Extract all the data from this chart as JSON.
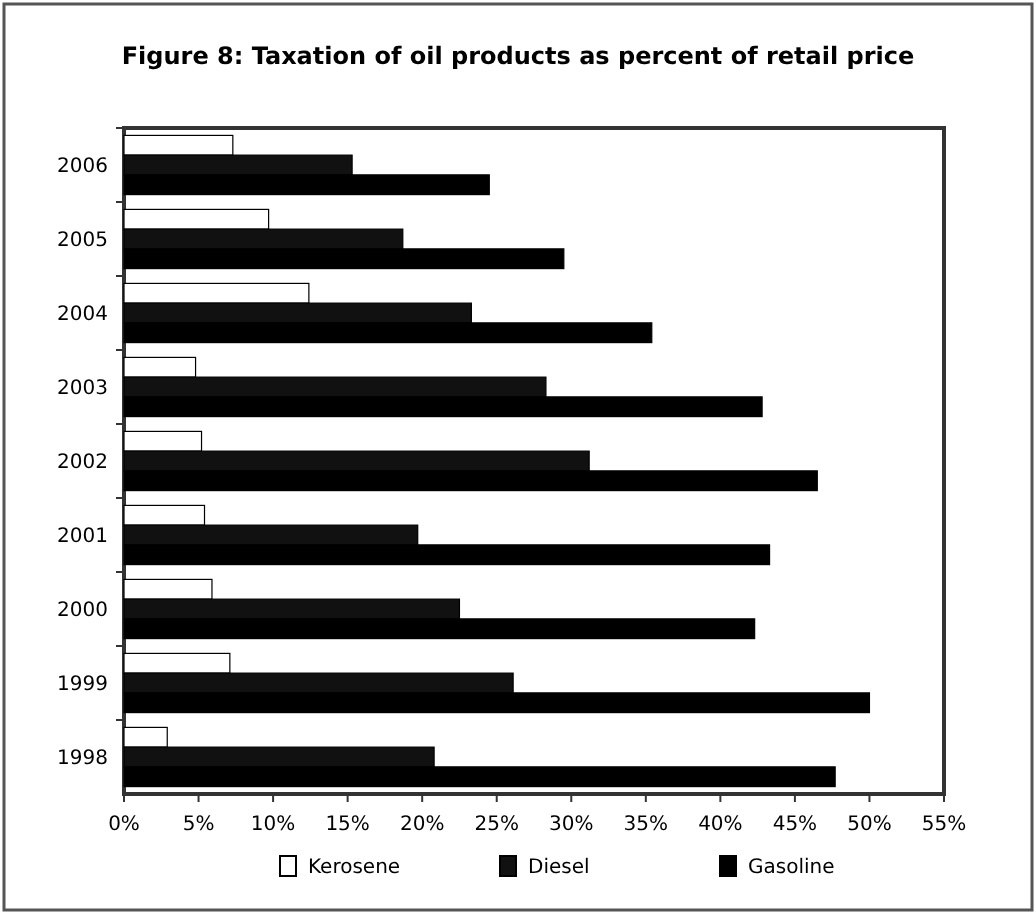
{
  "chart_data": {
    "type": "bar",
    "orientation": "horizontal",
    "title": "Figure 8: Taxation of oil products as percent of retail price",
    "categories": [
      "2006",
      "2005",
      "2004",
      "2003",
      "2002",
      "2001",
      "2000",
      "1999",
      "1998"
    ],
    "series": [
      {
        "name": "Kerosene",
        "color": "#ffffff",
        "values": [
          7.3,
          9.7,
          12.4,
          4.8,
          5.2,
          5.4,
          5.9,
          7.1,
          2.9
        ]
      },
      {
        "name": "Diesel",
        "color": "#111111",
        "values": [
          15.3,
          18.7,
          23.3,
          28.3,
          31.2,
          19.7,
          22.5,
          26.1,
          20.8
        ]
      },
      {
        "name": "Gasoline",
        "color": "#000000",
        "values": [
          24.5,
          29.5,
          35.4,
          42.8,
          46.5,
          43.3,
          42.3,
          50.0,
          47.7
        ]
      }
    ],
    "xlim": [
      0,
      55
    ],
    "xticks": [
      {
        "value": 0,
        "label": "0%"
      },
      {
        "value": 5,
        "label": "5%"
      },
      {
        "value": 10,
        "label": "10%"
      },
      {
        "value": 15,
        "label": "15%"
      },
      {
        "value": 20,
        "label": "20%"
      },
      {
        "value": 25,
        "label": "25%"
      },
      {
        "value": 30,
        "label": "30%"
      },
      {
        "value": 35,
        "label": "35%"
      },
      {
        "value": 40,
        "label": "40%"
      },
      {
        "value": 45,
        "label": "45%"
      },
      {
        "value": 50,
        "label": "50%"
      },
      {
        "value": 55,
        "label": "55%"
      }
    ],
    "grid": false,
    "legend": "bottom"
  }
}
